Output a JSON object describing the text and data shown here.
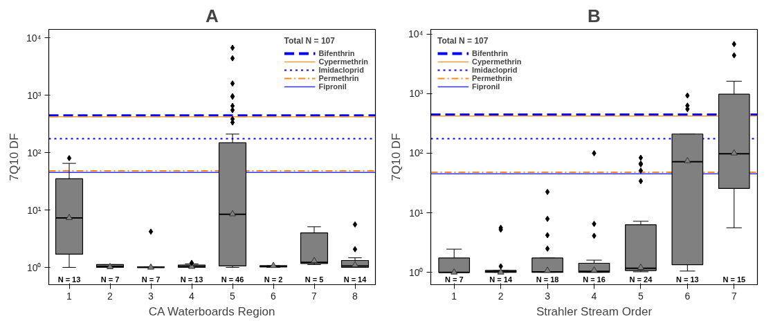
{
  "chart_data": [
    {
      "type": "box",
      "title": "A",
      "xlabel": "CA Waterboards Region",
      "ylabel": "7Q10 DF",
      "legend_title": "Total N = 107",
      "legend": "top right",
      "log": true,
      "grid": false,
      "color": "#808080",
      "categories": [
        "1",
        "2",
        "3",
        "4",
        "5",
        "6",
        "7",
        "8"
      ],
      "ylim": [
        0.5,
        14000
      ],
      "yticks": [
        {
          "value": 1,
          "label": "10⁰"
        },
        {
          "value": 10,
          "label": "10¹"
        },
        {
          "value": 100,
          "label": "10²"
        },
        {
          "value": 1000,
          "label": "10³"
        },
        {
          "value": 10000,
          "label": "10⁴"
        }
      ],
      "boxes": [
        {
          "low": 1.0,
          "q1": 1.7,
          "median": 7.3,
          "q3": 35,
          "high": 65,
          "mean": 7.3,
          "outliers": [
            80
          ]
        },
        {
          "low": 1.0,
          "q1": 1.0,
          "median": 1.04,
          "q3": 1.12,
          "high": 1.12,
          "mean": 1.02
        },
        {
          "low": 1.0,
          "q1": 1.0,
          "median": 1.0,
          "q3": 1.02,
          "high": 1.02,
          "mean": 1.0,
          "outliers": [
            4.2
          ]
        },
        {
          "low": 1.0,
          "q1": 1.0,
          "median": 1.03,
          "q3": 1.1,
          "high": 1.15,
          "mean": 1.03,
          "outliers": [
            1.2
          ]
        },
        {
          "low": 1.0,
          "q1": 1.06,
          "median": 8.4,
          "q3": 148,
          "high": 210,
          "mean": 8.5,
          "outliers": [
            335,
            385,
            550,
            650,
            940,
            960,
            1600,
            4400,
            6700
          ]
        },
        {
          "low": 1.0,
          "q1": 1.02,
          "median": 1.05,
          "q3": 1.07,
          "high": 1.07,
          "mean": 1.07
        },
        {
          "low": 1.12,
          "q1": 1.17,
          "median": 1.22,
          "q3": 4.0,
          "high": 5.1,
          "mean": 1.3
        },
        {
          "low": 1.0,
          "q1": 1.0,
          "median": 1.06,
          "q3": 1.32,
          "high": 1.47,
          "mean": 1.1,
          "outliers": [
            2.07,
            5.6
          ]
        }
      ],
      "ref_lines": [
        {
          "axis": "y",
          "value": 440,
          "label": "Bifenthrin",
          "color": "#0000ff",
          "line_style": "dashed"
        },
        {
          "axis": "y",
          "value": 420,
          "label": "Cypermethrin",
          "color": "#ff9933",
          "line_style": "solid"
        },
        {
          "axis": "y",
          "value": 175,
          "label": "Imidacloprid",
          "color": "#0000ff",
          "line_style": "dotted"
        },
        {
          "axis": "y",
          "value": 48,
          "label": "Permethrin",
          "color": "#ff8c1a",
          "line_style": "dashdot"
        },
        {
          "axis": "y",
          "value": 45,
          "label": "Fipronil",
          "color": "#3333ff",
          "line_style": "solid"
        }
      ],
      "annotations": [
        "N = 13",
        "N = 7",
        "N = 7",
        "N = 13",
        "N = 46",
        "N = 2",
        "N = 5",
        "N = 14"
      ]
    },
    {
      "type": "box",
      "title": "B",
      "xlabel": "Strahler Stream Order",
      "ylabel": "7Q10 DF",
      "legend_title": "Total N = 107",
      "legend": "top left",
      "log": true,
      "grid": false,
      "color": "#808080",
      "categories": [
        "1",
        "2",
        "3",
        "4",
        "5",
        "6",
        "7"
      ],
      "ylim": [
        0.62,
        12000
      ],
      "yticks": [
        {
          "value": 1,
          "label": "10⁰"
        },
        {
          "value": 10,
          "label": "10¹"
        },
        {
          "value": 100,
          "label": "10²"
        },
        {
          "value": 1000,
          "label": "10³"
        },
        {
          "value": 10000,
          "label": "10⁴"
        }
      ],
      "boxes": [
        {
          "low": 1.0,
          "q1": 1.0,
          "median": 1.0,
          "q3": 1.74,
          "high": 2.45,
          "mean": 1.0
        },
        {
          "low": 1.0,
          "q1": 1.0,
          "median": 1.03,
          "q3": 1.08,
          "high": 1.08,
          "mean": 1.0,
          "outliers": [
            1.26,
            5.2,
            5.6
          ]
        },
        {
          "low": 1.0,
          "q1": 1.0,
          "median": 1.02,
          "q3": 1.74,
          "high": 1.74,
          "mean": 1.07,
          "outliers": [
            2.5,
            4.2,
            7.9,
            22.4
          ]
        },
        {
          "low": 1.0,
          "q1": 1.0,
          "median": 1.04,
          "q3": 1.42,
          "high": 1.6,
          "mean": 1.08,
          "outliers": [
            4.1,
            6.5,
            100
          ]
        },
        {
          "low": 1.02,
          "q1": 1.07,
          "median": 1.17,
          "q3": 6.3,
          "high": 7.2,
          "mean": 1.2,
          "outliers": [
            34,
            51,
            65,
            67,
            84
          ]
        },
        {
          "low": 1.05,
          "q1": 1.34,
          "median": 72,
          "q3": 210,
          "high": 210,
          "mean": 74,
          "outliers": [
            550,
            630,
            930
          ]
        },
        {
          "low": 5.6,
          "q1": 25.6,
          "median": 98,
          "q3": 980,
          "high": 1620,
          "mean": 100,
          "outliers": [
            4400,
            6800
          ]
        }
      ],
      "ref_lines": [
        {
          "axis": "y",
          "value": 440,
          "label": "Bifenthrin",
          "color": "#0000ff",
          "line_style": "dashed"
        },
        {
          "axis": "y",
          "value": 420,
          "label": "Cypermethrin",
          "color": "#ff9933",
          "line_style": "solid"
        },
        {
          "axis": "y",
          "value": 175,
          "label": "Imidacloprid",
          "color": "#0000ff",
          "line_style": "dotted"
        },
        {
          "axis": "y",
          "value": 48,
          "label": "Permethrin",
          "color": "#ff8c1a",
          "line_style": "dashdot"
        },
        {
          "axis": "y",
          "value": 45,
          "label": "Fipronil",
          "color": "#3333ff",
          "line_style": "solid"
        }
      ],
      "annotations": [
        "N = 7",
        "N = 14",
        "N = 18",
        "N = 16",
        "N = 24",
        "N = 13",
        "N = 15"
      ]
    }
  ]
}
